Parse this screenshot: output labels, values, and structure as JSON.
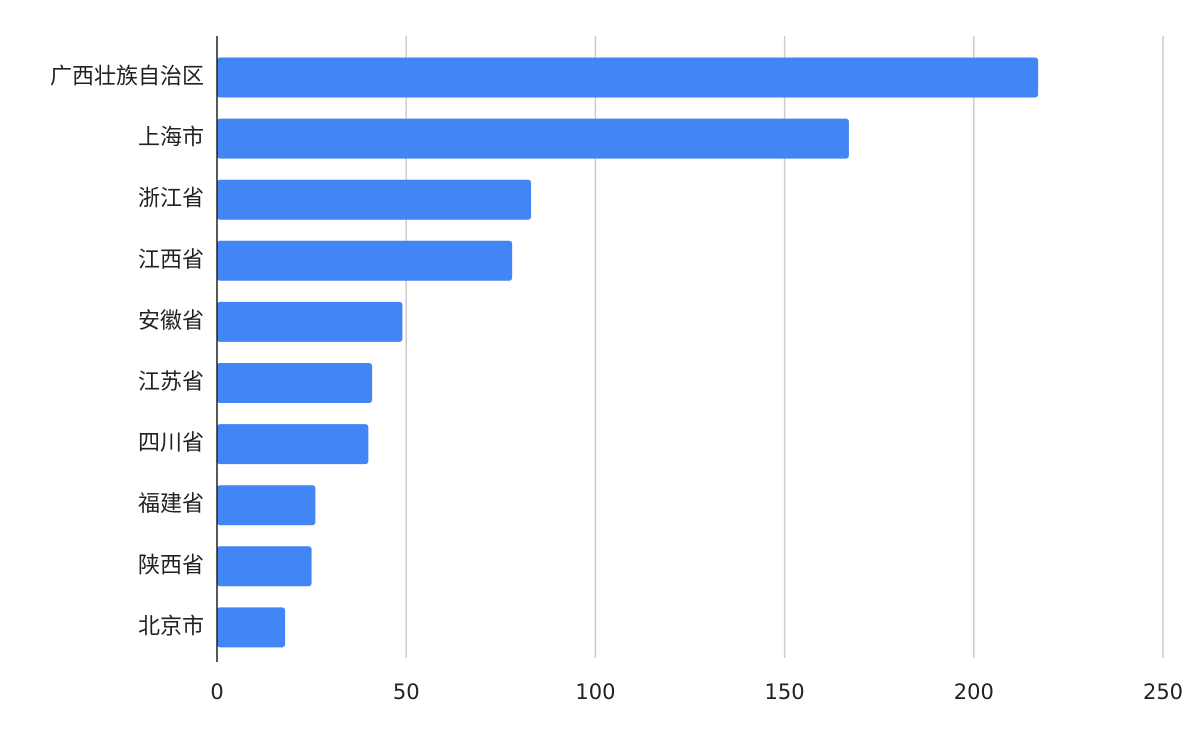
{
  "chart_data": {
    "type": "bar",
    "orientation": "horizontal",
    "categories": [
      "广西壮族自治区",
      "上海市",
      "浙江省",
      "江西省",
      "安徽省",
      "江苏省",
      "四川省",
      "福建省",
      "陕西省",
      "北京市"
    ],
    "values": [
      217,
      167,
      83,
      78,
      49,
      41,
      40,
      26,
      25,
      18
    ],
    "title": "",
    "xlabel": "",
    "ylabel": "",
    "xlim": [
      0,
      250
    ],
    "x_ticks": [
      0,
      50,
      100,
      150,
      200,
      250
    ],
    "x_tick_labels": [
      "0",
      "50",
      "100",
      "150",
      "200",
      "250"
    ],
    "grid": "vertical",
    "legend": "none",
    "colors": {
      "bar": "#4285f4",
      "grid": "#cccccc",
      "axis": "#222222"
    }
  }
}
